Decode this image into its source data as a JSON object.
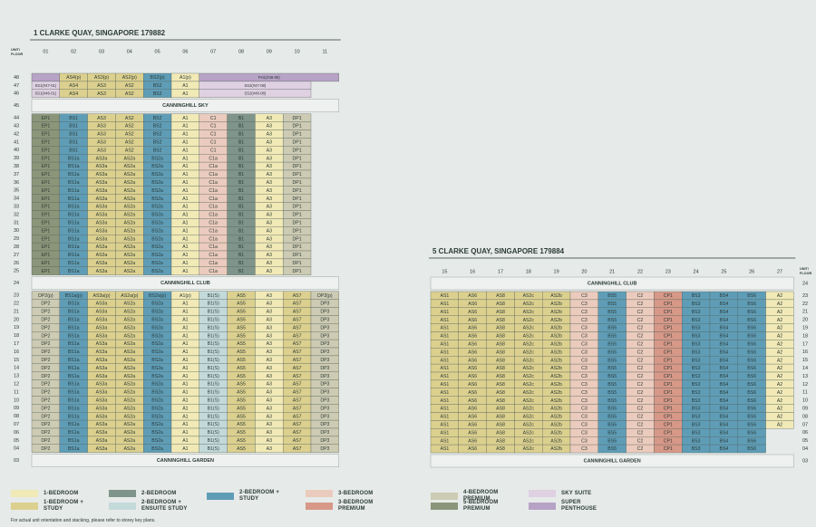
{
  "legend": [
    {
      "label": "1-BEDROOM",
      "color": "#f1e9b6"
    },
    {
      "label": "1-BEDROOM + STUDY",
      "color": "#dcd08f"
    },
    {
      "label": "2-BEDROOM",
      "color": "#7f948a"
    },
    {
      "label": "2-BEDROOM + ENSUITE STUDY",
      "color": "#c3dadb"
    },
    {
      "label": "2-BEDROOM + STUDY",
      "color": "#5f9db7"
    },
    {
      "label": "3-BEDROOM",
      "color": "#ebcbbd"
    },
    {
      "label": "3-BEDROOM PREMIUM",
      "color": "#d79888"
    },
    {
      "label": "4-BEDROOM PREMIUM",
      "color": "#cdcbb3"
    },
    {
      "label": "5-BEDROOM PREMIUM",
      "color": "#8b9579"
    },
    {
      "label": "SKY SUITE",
      "color": "#dfd0e2"
    },
    {
      "label": "SUPER PENTHOUSE",
      "color": "#b7a3c6"
    }
  ],
  "blocks": [
    {
      "title": "1 CLARKE QUAY, SINGAPORE 179882",
      "unit_floor": [
        "UNIT/",
        "FLOOR"
      ],
      "columns": [
        "01",
        "02",
        "03",
        "04",
        "05",
        "06",
        "07",
        "08",
        "09",
        "10",
        "11"
      ],
      "rows": [
        {
          "floors": [
            "48"
          ],
          "cells": [
            {
              "type": 10
            },
            {
              "label": "AS4(p)",
              "type": 1
            },
            {
              "label": "AS3(p)",
              "type": 1
            },
            {
              "label": "AS2(p)",
              "type": 1
            },
            {
              "label": "BS2(p)",
              "type": 4
            },
            {
              "label": "A1(p)",
              "type": 0
            },
            {
              "label": "PH1(#48-08)",
              "type": 10,
              "span": 5
            }
          ]
        },
        {
          "floors": [
            "47"
          ],
          "cells": [
            {
              "label": "SS1(#47-01)",
              "type": 9
            },
            {
              "label": "AS4",
              "type": 1
            },
            {
              "label": "AS3",
              "type": 1
            },
            {
              "label": "AS2",
              "type": 1
            },
            {
              "label": "BS2",
              "type": 4
            },
            {
              "label": "A1",
              "type": 0
            },
            {
              "label": "SS2(#47-08)",
              "type": 9,
              "span": 4
            }
          ]
        },
        {
          "floors": [
            "46"
          ],
          "cells": [
            {
              "label": "SS1(#46-01)",
              "type": 9
            },
            {
              "label": "AS4",
              "type": 1
            },
            {
              "label": "AS3",
              "type": 1
            },
            {
              "label": "AS2",
              "type": 1
            },
            {
              "label": "BS2",
              "type": 4
            },
            {
              "label": "A1",
              "type": 0
            },
            {
              "label": "SS2(#46-08)",
              "type": 9,
              "span": 4
            }
          ]
        },
        {
          "floors": [
            "45"
          ],
          "band": "CANNINGHILL SKY"
        },
        {
          "floors": [
            "44",
            "43",
            "42",
            "41",
            "40"
          ],
          "cells": [
            {
              "label": "EP1",
              "type": 8
            },
            {
              "label": "BS1",
              "type": 4
            },
            {
              "label": "AS3",
              "type": 1
            },
            {
              "label": "AS2",
              "type": 1
            },
            {
              "label": "BS2",
              "type": 4
            },
            {
              "label": "A1",
              "type": 0
            },
            {
              "label": "C1",
              "type": 5
            },
            {
              "label": "B1",
              "type": 2
            },
            {
              "label": "A3",
              "type": 0
            },
            {
              "label": "DP1",
              "type": 7
            }
          ]
        },
        {
          "floors": [
            "39",
            "38",
            "37",
            "36",
            "35",
            "34",
            "33",
            "32",
            "31",
            "30",
            "29",
            "28",
            "27",
            "26",
            "25"
          ],
          "cells": [
            {
              "label": "EP1",
              "type": 8
            },
            {
              "label": "BS1a",
              "type": 4
            },
            {
              "label": "AS3a",
              "type": 1
            },
            {
              "label": "AS2a",
              "type": 1
            },
            {
              "label": "BS2a",
              "type": 4
            },
            {
              "label": "A1",
              "type": 0
            },
            {
              "label": "C1a",
              "type": 5
            },
            {
              "label": "B1",
              "type": 2
            },
            {
              "label": "A3",
              "type": 0
            },
            {
              "label": "DP1",
              "type": 7
            }
          ]
        },
        {
          "floors": [
            "24"
          ],
          "band": "CANNINGHILL CLUB"
        },
        {
          "floors": [
            "23"
          ],
          "cells": [
            {
              "label": "DP2(p)",
              "type": 7
            },
            {
              "label": "BS1a(p)",
              "type": 4
            },
            {
              "label": "AS3a(p)",
              "type": 1
            },
            {
              "label": "AS2a(p)",
              "type": 1
            },
            {
              "label": "BS2a(p)",
              "type": 4
            },
            {
              "label": "A1(p)",
              "type": 0
            },
            {
              "label": "B1(S)",
              "type": 3
            },
            {
              "label": "AS5",
              "type": 1
            },
            {
              "label": "A3",
              "type": 0
            },
            {
              "label": "AS7",
              "type": 1
            },
            {
              "label": "DP3(p)",
              "type": 7
            }
          ]
        },
        {
          "floors": [
            "22",
            "21",
            "20",
            "19",
            "18",
            "17",
            "16",
            "15",
            "14",
            "13",
            "12",
            "11",
            "10",
            "09",
            "08",
            "07",
            "06",
            "05",
            "04"
          ],
          "cells": [
            {
              "label": "DP2",
              "type": 7
            },
            {
              "label": "BS1a",
              "type": 4
            },
            {
              "label": "AS3a",
              "type": 1
            },
            {
              "label": "AS2a",
              "type": 1
            },
            {
              "label": "BS2a",
              "type": 4
            },
            {
              "label": "A1",
              "type": 0
            },
            {
              "label": "B1(S)",
              "type": 3
            },
            {
              "label": "AS5",
              "type": 1
            },
            {
              "label": "A3",
              "type": 0
            },
            {
              "label": "AS7",
              "type": 1
            },
            {
              "label": "DP3",
              "type": 7
            }
          ]
        },
        {
          "floors": [
            "03"
          ],
          "band": "CANNINGHILL GARDEN"
        }
      ]
    },
    {
      "title": "5 CLARKE QUAY, SINGAPORE 179884",
      "unit_floor": [
        "UNIT/",
        "FLOOR"
      ],
      "columns": [
        "15",
        "16",
        "17",
        "18",
        "19",
        "20",
        "21",
        "22",
        "23",
        "24",
        "25",
        "26",
        "27"
      ],
      "rows": [
        {
          "floors": [
            "24"
          ],
          "band": "CANNINGHILL CLUB"
        },
        {
          "floors": [
            "23",
            "22",
            "21",
            "20",
            "19",
            "18",
            "17",
            "16",
            "15",
            "14",
            "13",
            "12",
            "11",
            "10",
            "09",
            "08",
            "07"
          ],
          "cells": [
            {
              "label": "AS1",
              "type": 1
            },
            {
              "label": "AS6",
              "type": 1
            },
            {
              "label": "AS8",
              "type": 1
            },
            {
              "label": "AS2c",
              "type": 1
            },
            {
              "label": "AS2b",
              "type": 1
            },
            {
              "label": "C3",
              "type": 5
            },
            {
              "label": "BS5",
              "type": 4
            },
            {
              "label": "C2",
              "type": 5
            },
            {
              "label": "CP1",
              "type": 6
            },
            {
              "label": "BS3",
              "type": 4
            },
            {
              "label": "BS4",
              "type": 4
            },
            {
              "label": "BS6",
              "type": 4
            },
            {
              "label": "A2",
              "type": 0
            }
          ]
        },
        {
          "floors": [
            "06",
            "05",
            "04"
          ],
          "cells": [
            {
              "label": "AS1",
              "type": 1
            },
            {
              "label": "AS6",
              "type": 1
            },
            {
              "label": "AS8",
              "type": 1
            },
            {
              "label": "AS2c",
              "type": 1
            },
            {
              "label": "AS2b",
              "type": 1
            },
            {
              "label": "C3",
              "type": 5
            },
            {
              "label": "BS5",
              "type": 4
            },
            {
              "label": "C2",
              "type": 5
            },
            {
              "label": "CP1",
              "type": 6
            },
            {
              "label": "BS3",
              "type": 4
            },
            {
              "label": "BS4",
              "type": 4
            },
            {
              "label": "BS6",
              "type": 4
            }
          ]
        },
        {
          "floors": [
            "03"
          ],
          "band": "CANNINGHILL GARDEN"
        }
      ]
    }
  ],
  "note": "For actual unit orientation and stacking, please refer to storey key plans."
}
